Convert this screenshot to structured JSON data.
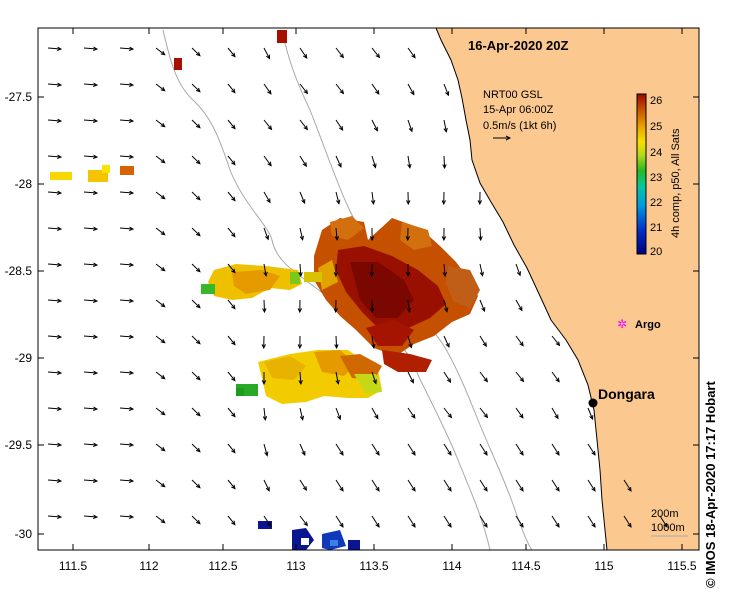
{
  "map": {
    "date": "16-Apr-2020 20Z",
    "source_lines": [
      "NRT00 GSL",
      "15-Apr 06:00Z",
      "0.5m/s (1kt 6h)"
    ],
    "lon_ticks": [
      "111.5",
      "112",
      "112.5",
      "113",
      "113.5",
      "114",
      "114.5",
      "115",
      "115.5"
    ],
    "lat_ticks": [
      "-27.5",
      "-28",
      "-28.5",
      "-29",
      "-29.5",
      "-30"
    ],
    "places": [
      {
        "name": "Argo",
        "lon": 115.06,
        "lat": -28.83,
        "marker": "argo-star"
      },
      {
        "name": "Dongara",
        "lon": 114.93,
        "lat": -29.25,
        "marker": "town-dot"
      }
    ],
    "isobaths": [
      "200m",
      "1000m"
    ],
    "credit": "© IMOS 18-Apr-2020 17:17 Hobart",
    "land_color": "#fbc890",
    "sea_color": "#ffffff"
  },
  "colorbar": {
    "label": "4h comp, p50, All Sats",
    "ticks": [
      "26",
      "25",
      "24",
      "23",
      "22",
      "21",
      "20"
    ],
    "min": 20,
    "max": 26
  }
}
